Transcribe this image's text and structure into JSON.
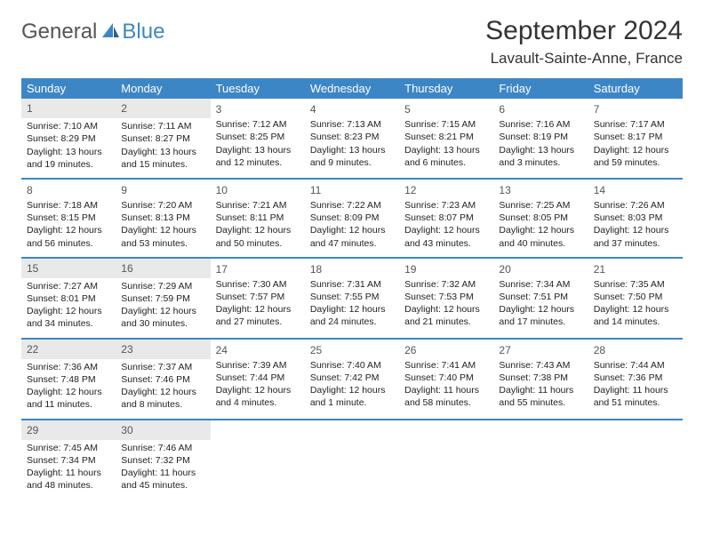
{
  "logo": {
    "part1": "General",
    "part2": "Blue",
    "icon_color": "#3d86c6"
  },
  "title": "September 2024",
  "location": "Lavault-Sainte-Anne, France",
  "colors": {
    "header_bg": "#3d86c6",
    "header_fg": "#ffffff",
    "shade_bg": "#e9e9e9",
    "divider": "#3d86c6",
    "text": "#222222"
  },
  "day_headers": [
    "Sunday",
    "Monday",
    "Tuesday",
    "Wednesday",
    "Thursday",
    "Friday",
    "Saturday"
  ],
  "weeks": [
    [
      {
        "n": "1",
        "shade": true,
        "sr": "7:10 AM",
        "ss": "8:29 PM",
        "dl": "13 hours and 19 minutes."
      },
      {
        "n": "2",
        "shade": true,
        "sr": "7:11 AM",
        "ss": "8:27 PM",
        "dl": "13 hours and 15 minutes."
      },
      {
        "n": "3",
        "shade": false,
        "sr": "7:12 AM",
        "ss": "8:25 PM",
        "dl": "13 hours and 12 minutes."
      },
      {
        "n": "4",
        "shade": false,
        "sr": "7:13 AM",
        "ss": "8:23 PM",
        "dl": "13 hours and 9 minutes."
      },
      {
        "n": "5",
        "shade": false,
        "sr": "7:15 AM",
        "ss": "8:21 PM",
        "dl": "13 hours and 6 minutes."
      },
      {
        "n": "6",
        "shade": false,
        "sr": "7:16 AM",
        "ss": "8:19 PM",
        "dl": "13 hours and 3 minutes."
      },
      {
        "n": "7",
        "shade": false,
        "sr": "7:17 AM",
        "ss": "8:17 PM",
        "dl": "12 hours and 59 minutes."
      }
    ],
    [
      {
        "n": "8",
        "shade": false,
        "sr": "7:18 AM",
        "ss": "8:15 PM",
        "dl": "12 hours and 56 minutes."
      },
      {
        "n": "9",
        "shade": false,
        "sr": "7:20 AM",
        "ss": "8:13 PM",
        "dl": "12 hours and 53 minutes."
      },
      {
        "n": "10",
        "shade": false,
        "sr": "7:21 AM",
        "ss": "8:11 PM",
        "dl": "12 hours and 50 minutes."
      },
      {
        "n": "11",
        "shade": false,
        "sr": "7:22 AM",
        "ss": "8:09 PM",
        "dl": "12 hours and 47 minutes."
      },
      {
        "n": "12",
        "shade": false,
        "sr": "7:23 AM",
        "ss": "8:07 PM",
        "dl": "12 hours and 43 minutes."
      },
      {
        "n": "13",
        "shade": false,
        "sr": "7:25 AM",
        "ss": "8:05 PM",
        "dl": "12 hours and 40 minutes."
      },
      {
        "n": "14",
        "shade": false,
        "sr": "7:26 AM",
        "ss": "8:03 PM",
        "dl": "12 hours and 37 minutes."
      }
    ],
    [
      {
        "n": "15",
        "shade": true,
        "sr": "7:27 AM",
        "ss": "8:01 PM",
        "dl": "12 hours and 34 minutes."
      },
      {
        "n": "16",
        "shade": true,
        "sr": "7:29 AM",
        "ss": "7:59 PM",
        "dl": "12 hours and 30 minutes."
      },
      {
        "n": "17",
        "shade": false,
        "sr": "7:30 AM",
        "ss": "7:57 PM",
        "dl": "12 hours and 27 minutes."
      },
      {
        "n": "18",
        "shade": false,
        "sr": "7:31 AM",
        "ss": "7:55 PM",
        "dl": "12 hours and 24 minutes."
      },
      {
        "n": "19",
        "shade": false,
        "sr": "7:32 AM",
        "ss": "7:53 PM",
        "dl": "12 hours and 21 minutes."
      },
      {
        "n": "20",
        "shade": false,
        "sr": "7:34 AM",
        "ss": "7:51 PM",
        "dl": "12 hours and 17 minutes."
      },
      {
        "n": "21",
        "shade": false,
        "sr": "7:35 AM",
        "ss": "7:50 PM",
        "dl": "12 hours and 14 minutes."
      }
    ],
    [
      {
        "n": "22",
        "shade": true,
        "sr": "7:36 AM",
        "ss": "7:48 PM",
        "dl": "12 hours and 11 minutes."
      },
      {
        "n": "23",
        "shade": true,
        "sr": "7:37 AM",
        "ss": "7:46 PM",
        "dl": "12 hours and 8 minutes."
      },
      {
        "n": "24",
        "shade": false,
        "sr": "7:39 AM",
        "ss": "7:44 PM",
        "dl": "12 hours and 4 minutes."
      },
      {
        "n": "25",
        "shade": false,
        "sr": "7:40 AM",
        "ss": "7:42 PM",
        "dl": "12 hours and 1 minute."
      },
      {
        "n": "26",
        "shade": false,
        "sr": "7:41 AM",
        "ss": "7:40 PM",
        "dl": "11 hours and 58 minutes."
      },
      {
        "n": "27",
        "shade": false,
        "sr": "7:43 AM",
        "ss": "7:38 PM",
        "dl": "11 hours and 55 minutes."
      },
      {
        "n": "28",
        "shade": false,
        "sr": "7:44 AM",
        "ss": "7:36 PM",
        "dl": "11 hours and 51 minutes."
      }
    ],
    [
      {
        "n": "29",
        "shade": true,
        "sr": "7:45 AM",
        "ss": "7:34 PM",
        "dl": "11 hours and 48 minutes."
      },
      {
        "n": "30",
        "shade": true,
        "sr": "7:46 AM",
        "ss": "7:32 PM",
        "dl": "11 hours and 45 minutes."
      },
      null,
      null,
      null,
      null,
      null
    ]
  ],
  "labels": {
    "sunrise": "Sunrise:",
    "sunset": "Sunset:",
    "daylight": "Daylight:"
  }
}
